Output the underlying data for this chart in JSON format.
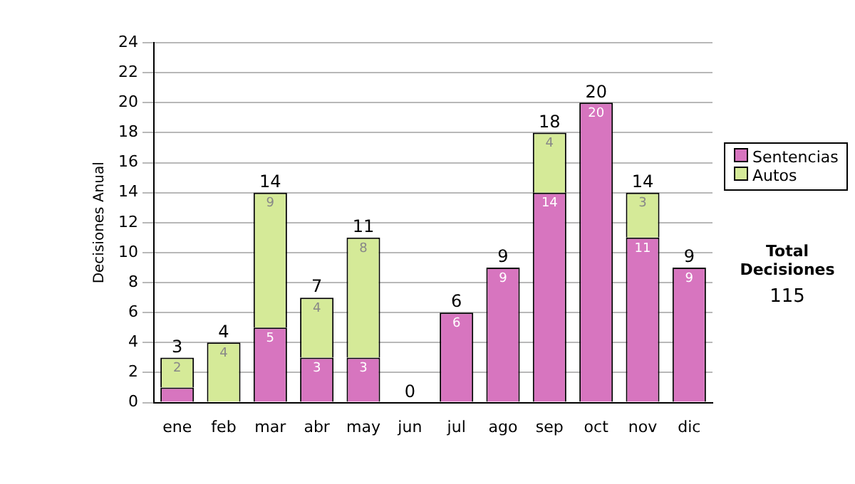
{
  "chart_data": {
    "type": "bar",
    "stacked": true,
    "ylabel": "Decisiones Anual",
    "categories": [
      "ene",
      "feb",
      "mar",
      "abr",
      "may",
      "jun",
      "jul",
      "ago",
      "sep",
      "oct",
      "nov",
      "dic"
    ],
    "series": [
      {
        "name": "Sentencias",
        "color": "#d775bf",
        "values": [
          1,
          0,
          5,
          3,
          3,
          0,
          6,
          9,
          14,
          20,
          11,
          9
        ],
        "value_labels": [
          null,
          null,
          "5",
          "3",
          "3",
          null,
          "6",
          "9",
          "14",
          "20",
          "11",
          "9"
        ]
      },
      {
        "name": "Autos",
        "color": "#d5ea98",
        "values": [
          2,
          4,
          9,
          4,
          8,
          0,
          0,
          0,
          4,
          0,
          3,
          0
        ],
        "value_labels": [
          "2",
          "4",
          "9",
          "4",
          "8",
          null,
          null,
          null,
          "4",
          null,
          "3",
          null
        ]
      }
    ],
    "totals": [
      "3",
      "4",
      "14",
      "7",
      "11",
      "0",
      "6",
      "9",
      "18",
      "20",
      "14",
      "9"
    ],
    "ylim": [
      0,
      24
    ],
    "yticks": [
      0,
      2,
      4,
      6,
      8,
      10,
      12,
      14,
      16,
      18,
      20,
      22,
      24
    ],
    "grid": "y",
    "legend": "right",
    "annotations": [
      "Total Decisiones",
      "115"
    ]
  }
}
